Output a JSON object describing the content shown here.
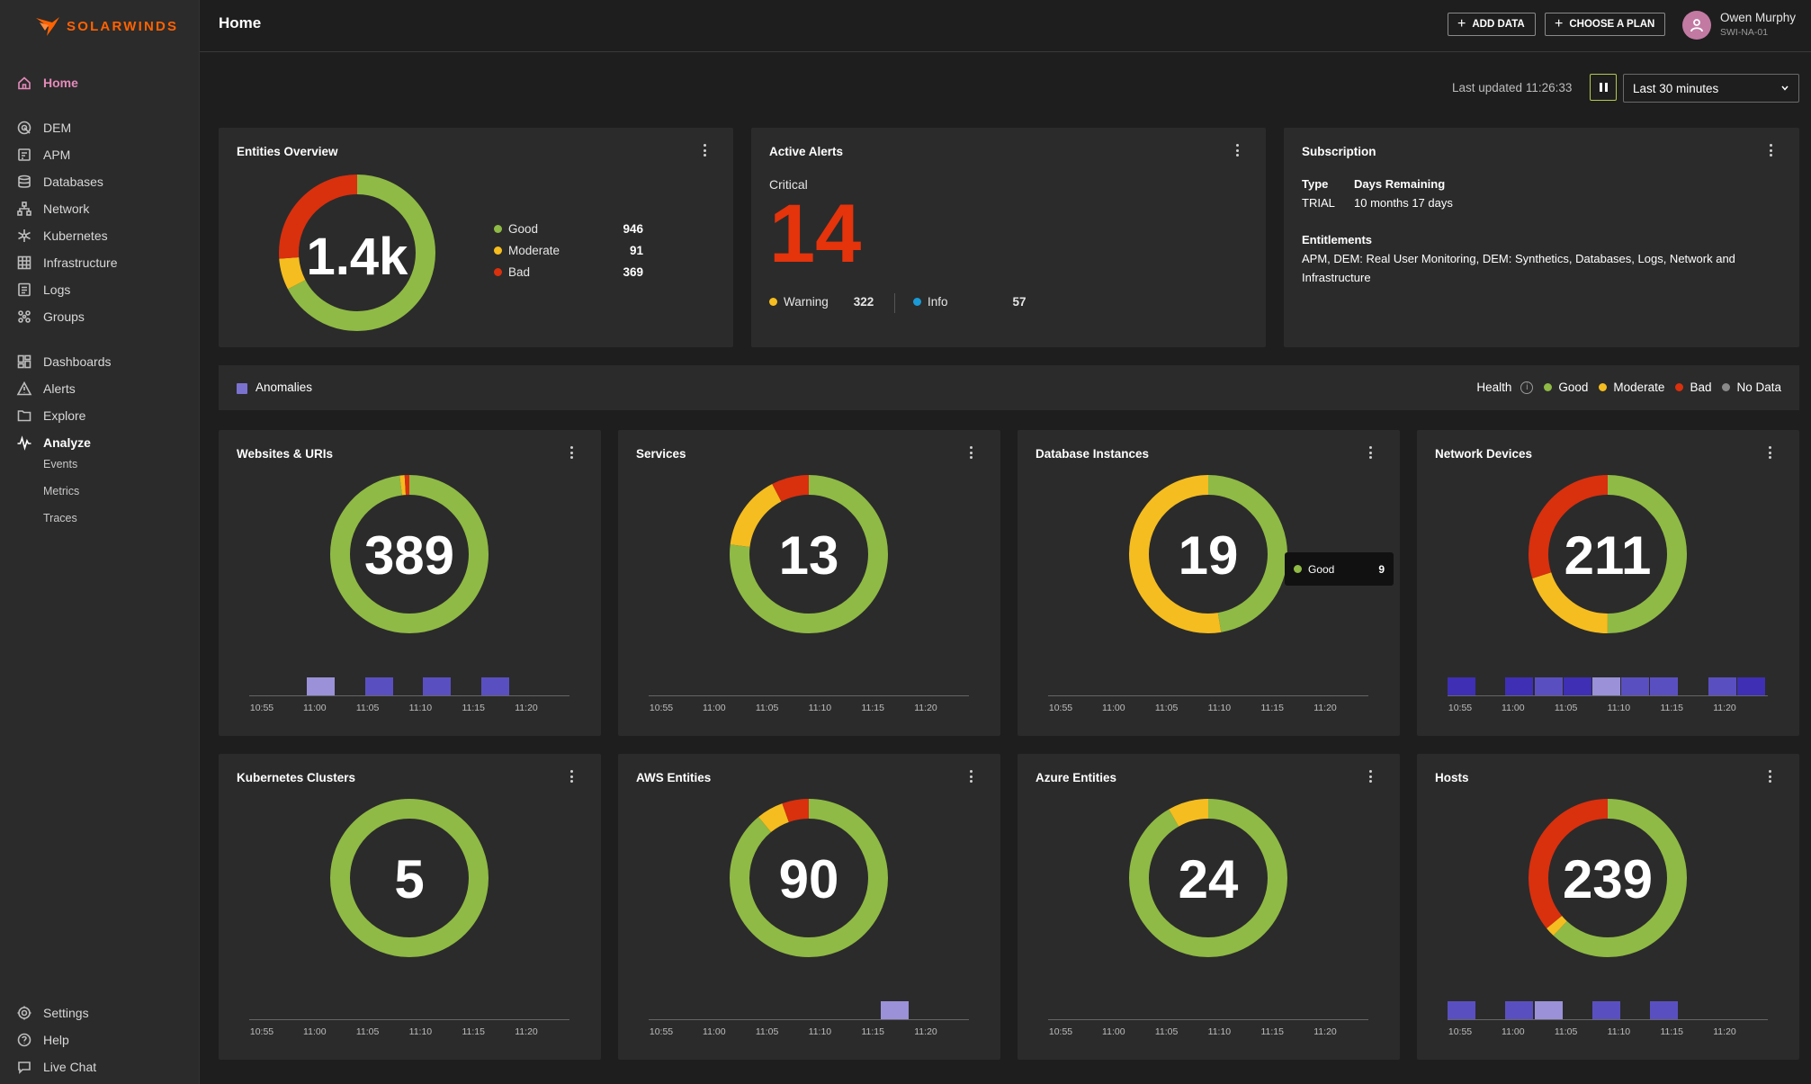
{
  "brand": {
    "name": "SOLARWINDS",
    "logo_icon": "solarwinds-flame-icon",
    "color": "#ff6200"
  },
  "sidebar": {
    "groups": [
      [
        {
          "label": "Home",
          "icon": "home-icon",
          "state": "active"
        }
      ],
      [
        {
          "label": "DEM",
          "icon": "dem-icon"
        },
        {
          "label": "APM",
          "icon": "apm-icon"
        },
        {
          "label": "Databases",
          "icon": "database-icon"
        },
        {
          "label": "Network",
          "icon": "network-icon"
        },
        {
          "label": "Kubernetes",
          "icon": "kubernetes-icon"
        },
        {
          "label": "Infrastructure",
          "icon": "infrastructure-icon"
        },
        {
          "label": "Logs",
          "icon": "logs-icon"
        },
        {
          "label": "Groups",
          "icon": "groups-icon"
        }
      ],
      [
        {
          "label": "Dashboards",
          "icon": "dashboards-icon"
        },
        {
          "label": "Alerts",
          "icon": "alerts-icon"
        },
        {
          "label": "Explore",
          "icon": "explore-icon"
        },
        {
          "label": "Analyze",
          "icon": "analyze-icon",
          "state": "expanded"
        }
      ]
    ],
    "analyze_sub": [
      "Events",
      "Metrics",
      "Traces"
    ],
    "bottom": [
      {
        "label": "Settings",
        "icon": "gear-icon"
      },
      {
        "label": "Help",
        "icon": "help-icon"
      },
      {
        "label": "Live Chat",
        "icon": "chat-icon"
      }
    ]
  },
  "header": {
    "title": "Home",
    "add_data": "ADD DATA",
    "choose_plan": "CHOOSE A PLAN",
    "user_name": "Owen Murphy",
    "user_org": "SWI-NA-01"
  },
  "toolbar": {
    "last_updated": "Last updated 11:26:33",
    "time_range": "Last 30 minutes"
  },
  "colors": {
    "good": "#8fba45",
    "moderate": "#f5bd1f",
    "bad": "#d9300e",
    "info": "#1a9bd7",
    "nodata": "#8a8a8a",
    "anomaly_light": "#9a91d8",
    "anomaly_mid": "#5a4fc0",
    "anomaly_dark": "#3e2fb5",
    "critical": "#e5330b"
  },
  "entities_overview": {
    "title": "Entities Overview",
    "center": "1.4k",
    "items": [
      {
        "label": "Good",
        "value": 946,
        "status": "good"
      },
      {
        "label": "Moderate",
        "value": 91,
        "status": "moderate"
      },
      {
        "label": "Bad",
        "value": 369,
        "status": "bad"
      }
    ]
  },
  "active_alerts": {
    "title": "Active Alerts",
    "critical_label": "Critical",
    "critical_value": "14",
    "warning_label": "Warning",
    "warning_value": "322",
    "info_label": "Info",
    "info_value": "57"
  },
  "subscription": {
    "title": "Subscription",
    "type_label": "Type",
    "type_value": "TRIAL",
    "days_label": "Days Remaining",
    "days_value": "10 months 17 days",
    "entitlements_label": "Entitlements",
    "entitlements_line1": "APM, DEM: Real User Monitoring, DEM: Synthetics, Databases, Logs, Network and",
    "entitlements_line2": "Infrastructure"
  },
  "anomalies_bar": {
    "label": "Anomalies",
    "health_label": "Health",
    "legend": [
      {
        "label": "Good",
        "status": "good"
      },
      {
        "label": "Moderate",
        "status": "moderate"
      },
      {
        "label": "Bad",
        "status": "bad"
      },
      {
        "label": "No Data",
        "status": "nodata"
      }
    ]
  },
  "time_axis": [
    "10:55",
    "11:00",
    "11:05",
    "11:10",
    "11:15",
    "11:20"
  ],
  "tooltip": {
    "label": "Good",
    "value": "9"
  },
  "tiles": [
    {
      "title": "Websites & URIs",
      "center": "389",
      "segments": [
        {
          "status": "good",
          "fraction": 0.98
        },
        {
          "status": "moderate",
          "fraction": 0.01
        },
        {
          "status": "bad",
          "fraction": 0.01
        }
      ],
      "anomalies": [
        {
          "slot": 2,
          "shade": "light"
        },
        {
          "slot": 4,
          "shade": "mid"
        },
        {
          "slot": 6,
          "shade": "mid"
        },
        {
          "slot": 8,
          "shade": "mid"
        }
      ]
    },
    {
      "title": "Services",
      "center": "13",
      "segments": [
        {
          "status": "good",
          "fraction": 0.7692
        },
        {
          "status": "moderate",
          "fraction": 0.1538
        },
        {
          "status": "bad",
          "fraction": 0.0769
        }
      ],
      "anomalies": []
    },
    {
      "title": "Database Instances",
      "center": "19",
      "segments": [
        {
          "status": "good",
          "fraction": 0.4737
        },
        {
          "status": "moderate",
          "fraction": 0.5263
        },
        {
          "status": "bad",
          "fraction": 0
        }
      ],
      "anomalies": []
    },
    {
      "title": "Network Devices",
      "center": "211",
      "segments": [
        {
          "status": "good",
          "fraction": 0.5
        },
        {
          "status": "moderate",
          "fraction": 0.2
        },
        {
          "status": "bad",
          "fraction": 0.3
        }
      ],
      "anomalies": [
        {
          "slot": 0,
          "shade": "dark"
        },
        {
          "slot": 2,
          "shade": "dark"
        },
        {
          "slot": 3,
          "shade": "mid"
        },
        {
          "slot": 4,
          "shade": "dark"
        },
        {
          "slot": 5,
          "shade": "light"
        },
        {
          "slot": 6,
          "shade": "mid"
        },
        {
          "slot": 7,
          "shade": "mid"
        },
        {
          "slot": 9,
          "shade": "mid"
        },
        {
          "slot": 10,
          "shade": "dark"
        }
      ]
    },
    {
      "title": "Kubernetes Clusters",
      "center": "5",
      "segments": [
        {
          "status": "good",
          "fraction": 1
        },
        {
          "status": "moderate",
          "fraction": 0
        },
        {
          "status": "bad",
          "fraction": 0
        }
      ],
      "anomalies": []
    },
    {
      "title": "AWS Entities",
      "center": "90",
      "segments": [
        {
          "status": "good",
          "fraction": 0.89
        },
        {
          "status": "moderate",
          "fraction": 0.055
        },
        {
          "status": "bad",
          "fraction": 0.055
        }
      ],
      "anomalies": [
        {
          "slot": 8,
          "shade": "light"
        }
      ]
    },
    {
      "title": "Azure Entities",
      "center": "24",
      "segments": [
        {
          "status": "good",
          "fraction": 0.9167
        },
        {
          "status": "moderate",
          "fraction": 0.0833
        },
        {
          "status": "bad",
          "fraction": 0
        }
      ],
      "anomalies": []
    },
    {
      "title": "Hosts",
      "center": "239",
      "segments": [
        {
          "status": "good",
          "fraction": 0.62
        },
        {
          "status": "moderate",
          "fraction": 0.02
        },
        {
          "status": "bad",
          "fraction": 0.36
        }
      ],
      "anomalies": [
        {
          "slot": 0,
          "shade": "mid"
        },
        {
          "slot": 2,
          "shade": "mid"
        },
        {
          "slot": 3,
          "shade": "light"
        },
        {
          "slot": 5,
          "shade": "mid"
        },
        {
          "slot": 7,
          "shade": "mid"
        }
      ]
    }
  ]
}
